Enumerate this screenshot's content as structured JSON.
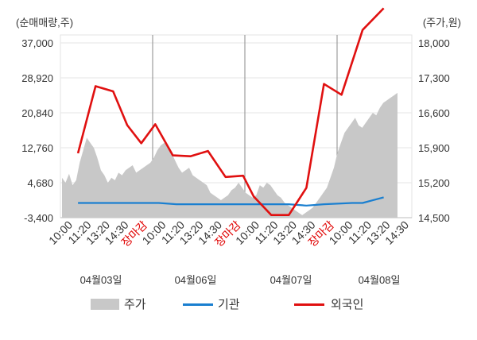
{
  "chart_data": {
    "type": "line",
    "left_axis_title": "(순매매량,주)",
    "right_axis_title": "(주가,원)",
    "left_ticks": [
      "37,000",
      "28,920",
      "20,840",
      "12,760",
      "4,680",
      "-3,400"
    ],
    "right_ticks": [
      "18,000",
      "17,300",
      "16,600",
      "15,900",
      "15,200",
      "14,500"
    ],
    "left_ylim": [
      -3400,
      37000
    ],
    "right_ylim": [
      14500,
      18000
    ],
    "x_tick_labels": [
      "10:00",
      "11:20",
      "13:20",
      "14:30",
      "장마감",
      "10:00",
      "11:20",
      "13:20",
      "14:30",
      "장마감",
      "10:00",
      "11:20",
      "13:20",
      "14:30",
      "장마감",
      "10:00",
      "11:20",
      "13:20",
      "14:30"
    ],
    "x_tick_marker": "장마감",
    "date_labels": [
      "04월03일",
      "04월06일",
      "04월07일",
      "04월08일"
    ],
    "legend": [
      "주가",
      "기관",
      "외국인"
    ],
    "colors": {
      "price": "#c8c8c8",
      "institution": "#1a7fd0",
      "foreign": "#e01010"
    },
    "series": [
      {
        "name": "주가",
        "axis": "right",
        "values": [
          15300,
          15200,
          15380,
          15150,
          15250,
          15600,
          15850,
          16100,
          16000,
          15900,
          15700,
          15450,
          15350,
          15200,
          15300,
          15250,
          15400,
          15350,
          15450,
          15500,
          15550,
          15400,
          15450,
          15500,
          15550,
          15600,
          15700,
          15850,
          15950,
          16000,
          15900,
          15800,
          15650,
          15500,
          15400,
          15450,
          15500,
          15350,
          15300,
          15250,
          15200,
          15150,
          15000,
          14950,
          14900,
          14850,
          14900,
          14950,
          15050,
          15100,
          15200,
          15100,
          15000,
          14950,
          14900,
          14950,
          15150,
          15100,
          15200,
          15150,
          15050,
          14950,
          14900,
          14800,
          14750,
          14700,
          14650,
          14600,
          14550,
          14600,
          14650,
          14700,
          14800,
          14900,
          15000,
          15100,
          15300,
          15500,
          15800,
          16000,
          16200,
          16300,
          16400,
          16500,
          16350,
          16300,
          16400,
          16500,
          16600,
          16550,
          16700,
          16800,
          16850,
          16900,
          16950,
          17000
        ]
      },
      {
        "name": "기관",
        "axis": "left",
        "x": [
          5,
          22,
          28,
          33,
          38,
          45,
          55,
          65,
          70,
          75,
          83,
          86,
          92
        ],
        "values": [
          0,
          0,
          0,
          -300,
          -300,
          -300,
          -300,
          -300,
          -600,
          -300,
          0,
          0,
          1300
        ]
      },
      {
        "name": "외국인",
        "axis": "left",
        "x": [
          5,
          10,
          15,
          19,
          23,
          27,
          32,
          37,
          42,
          47,
          52,
          55,
          60,
          65,
          70,
          75,
          80,
          86,
          92
        ],
        "values": [
          11500,
          27000,
          25800,
          18000,
          13800,
          18200,
          11000,
          10800,
          12000,
          6000,
          6300,
          1500,
          -2800,
          -2800,
          3500,
          27500,
          25000,
          40000,
          45000
        ]
      }
    ]
  }
}
